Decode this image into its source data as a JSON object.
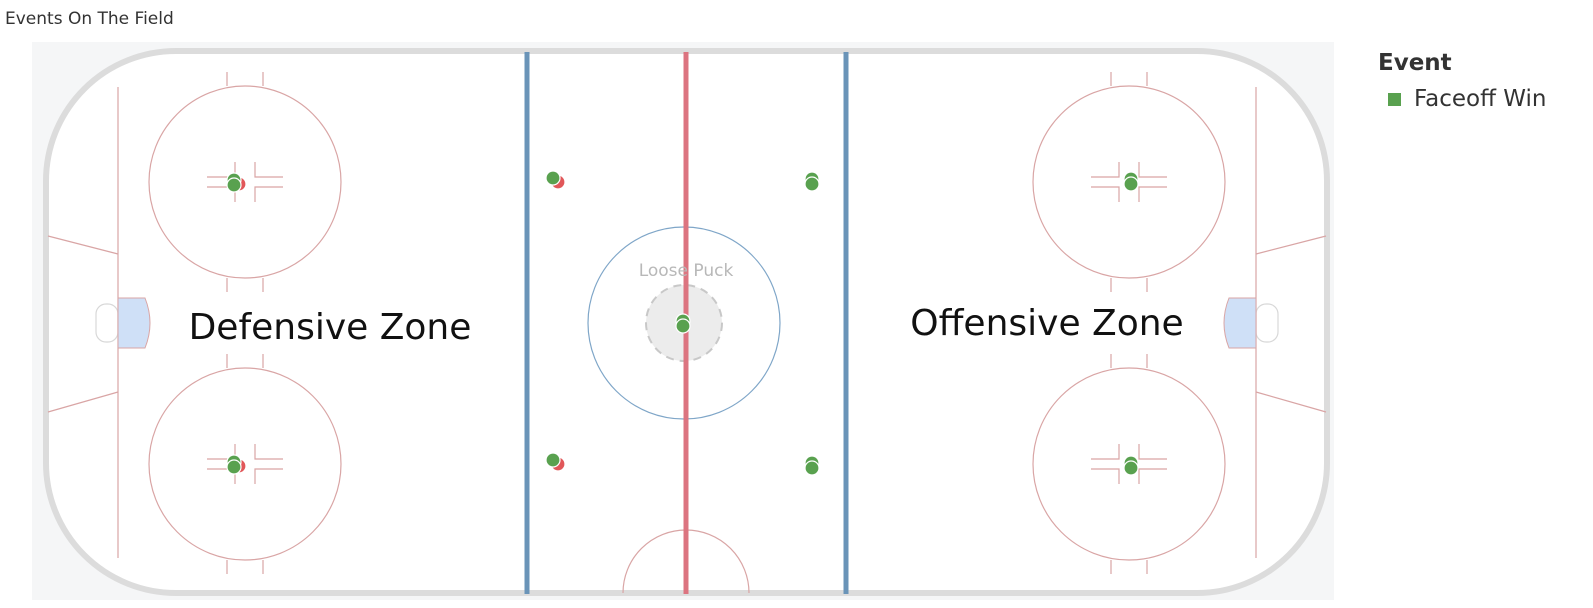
{
  "sheet": {
    "title": "Events On The Field"
  },
  "rink": {
    "zone_labels": {
      "defensive": "Defensive Zone",
      "offensive": "Offensive Zone"
    },
    "center_label": "Loose Puck"
  },
  "legend": {
    "title": "Event",
    "items": [
      {
        "label": "Faceoff Win",
        "color": "#59a14f"
      }
    ]
  },
  "colors": {
    "faceoff_win": "#59a14f",
    "faceoff_loss": "#e15759",
    "blue_line": "#6a94b8",
    "red_line": "#dc7480",
    "rink_line": "#d9a5a5",
    "boards": "#dcdcdc",
    "crease": "#cfe0f7",
    "background": "#f5f6f7"
  },
  "chart_data": {
    "type": "scatter",
    "title": "Events On The Field",
    "xlabel": "",
    "ylabel": "",
    "grid": false,
    "legend_position": "top-right",
    "series": [
      {
        "name": "Faceoff Win",
        "color": "#59a14f",
        "points": [
          {
            "spot": "defensive-zone-top-faceoff-dot"
          },
          {
            "spot": "defensive-zone-top-faceoff-dot"
          },
          {
            "spot": "defensive-zone-bottom-faceoff-dot"
          },
          {
            "spot": "defensive-zone-bottom-faceoff-dot"
          },
          {
            "spot": "neutral-zone-left-top-dot"
          },
          {
            "spot": "neutral-zone-left-bottom-dot"
          },
          {
            "spot": "center-ice"
          },
          {
            "spot": "center-ice"
          },
          {
            "spot": "neutral-zone-right-top-dot"
          },
          {
            "spot": "neutral-zone-right-top-dot"
          },
          {
            "spot": "neutral-zone-right-bottom-dot"
          },
          {
            "spot": "neutral-zone-right-bottom-dot"
          },
          {
            "spot": "offensive-zone-top-faceoff-dot"
          },
          {
            "spot": "offensive-zone-top-faceoff-dot"
          },
          {
            "spot": "offensive-zone-bottom-faceoff-dot"
          },
          {
            "spot": "offensive-zone-bottom-faceoff-dot"
          }
        ]
      },
      {
        "color": "#e15759",
        "points": [
          {
            "spot": "defensive-zone-top-faceoff-dot"
          },
          {
            "spot": "defensive-zone-bottom-faceoff-dot"
          },
          {
            "spot": "neutral-zone-left-top-dot"
          },
          {
            "spot": "neutral-zone-left-bottom-dot"
          }
        ]
      }
    ]
  }
}
